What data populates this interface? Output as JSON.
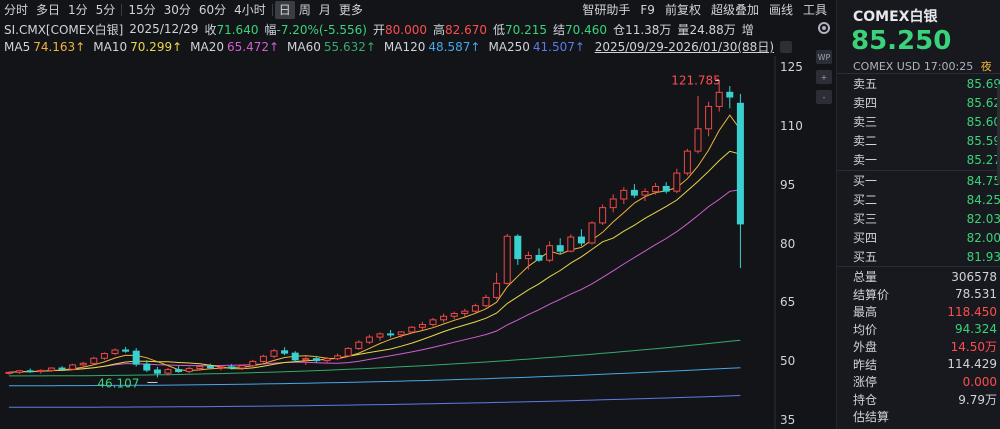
{
  "toolbar": {
    "periods": [
      "分时",
      "多日",
      "1分",
      "5分",
      "15分",
      "30分",
      "60分",
      "4小时",
      "日",
      "周",
      "月",
      "更多"
    ],
    "active": "日",
    "right": [
      "智研助手",
      "F9",
      "前复权",
      "超级叠加",
      "画线",
      "工具"
    ]
  },
  "info": {
    "symbol": "SI.CMX[COMEX白银]",
    "date": "2025/12/29",
    "close_label": "收",
    "close": "71.640",
    "change_label": "幅",
    "change": "-7.20%(-5.556)",
    "open_label": "开",
    "open": "80.000",
    "high_label": "高",
    "high": "82.670",
    "low_label": "低",
    "low": "70.215",
    "settle_label": "结",
    "settle": "70.460",
    "oi_label": "仓",
    "oi": "11.38万",
    "vol_label": "量",
    "vol": "24.88万",
    "inc_label": "增"
  },
  "ma": [
    {
      "label": "MA5",
      "value": "74.163↑",
      "color": "#f0b43c"
    },
    {
      "label": "MA10",
      "value": "70.299↑",
      "color": "#e8d84a"
    },
    {
      "label": "MA20",
      "value": "65.472↑",
      "color": "#d05fd0"
    },
    {
      "label": "MA60",
      "value": "55.632↑",
      "color": "#37a96b"
    },
    {
      "label": "MA120",
      "value": "48.587↑",
      "color": "#49a6e8"
    },
    {
      "label": "MA250",
      "value": "41.507↑",
      "color": "#5d7be8"
    }
  ],
  "range": {
    "text": "2025/09/29-2026/01/30(88日)"
  },
  "side_icons": [
    "WP",
    "+",
    "-"
  ],
  "chart": {
    "annot_high": "121.785",
    "annot_low": "46.107",
    "y_ticks": [
      "125",
      "110",
      "95",
      "80",
      "65",
      "50",
      "35"
    ]
  },
  "chart_data": {
    "type": "candlestick",
    "ylim": [
      35,
      125
    ],
    "y_ticks": [
      125,
      110,
      95,
      80,
      65,
      50,
      35
    ],
    "annotations": [
      {
        "label": "121.785",
        "kind": "high"
      },
      {
        "label": "46.107",
        "kind": "low"
      }
    ],
    "candles": [
      [
        47.2,
        47.6,
        46.8,
        47.4
      ],
      [
        47.4,
        48.0,
        47.0,
        47.8
      ],
      [
        47.8,
        48.4,
        47.3,
        47.6
      ],
      [
        47.6,
        48.2,
        47.1,
        47.9
      ],
      [
        47.9,
        48.7,
        47.6,
        48.5
      ],
      [
        48.5,
        49.0,
        47.9,
        48.2
      ],
      [
        48.2,
        49.6,
        48.0,
        49.3
      ],
      [
        49.3,
        50.1,
        48.6,
        49.7
      ],
      [
        49.7,
        51.4,
        49.5,
        51.0
      ],
      [
        51.0,
        52.5,
        50.6,
        52.2
      ],
      [
        52.2,
        53.5,
        51.8,
        53.1
      ],
      [
        53.1,
        53.9,
        52.4,
        52.8
      ],
      [
        52.8,
        53.6,
        48.9,
        49.5
      ],
      [
        49.5,
        50.5,
        47.5,
        48.0
      ],
      [
        48.0,
        48.8,
        46.1,
        47.2
      ],
      [
        47.2,
        48.5,
        46.6,
        48.1
      ],
      [
        48.1,
        49.0,
        47.3,
        47.6
      ],
      [
        47.6,
        48.8,
        47.2,
        48.4
      ],
      [
        48.4,
        49.3,
        47.8,
        48.9
      ],
      [
        48.9,
        49.6,
        48.2,
        48.6
      ],
      [
        48.6,
        49.2,
        47.9,
        48.8
      ],
      [
        48.8,
        49.5,
        48.1,
        48.5
      ],
      [
        48.5,
        49.4,
        48.0,
        49.1
      ],
      [
        49.1,
        50.6,
        48.8,
        50.2
      ],
      [
        50.2,
        51.9,
        49.9,
        51.5
      ],
      [
        51.5,
        53.4,
        51.0,
        52.9
      ],
      [
        52.9,
        53.8,
        51.8,
        52.3
      ],
      [
        52.3,
        52.8,
        50.0,
        50.6
      ],
      [
        50.6,
        51.4,
        49.3,
        50.9
      ],
      [
        50.9,
        51.5,
        49.9,
        50.4
      ],
      [
        50.4,
        51.3,
        49.8,
        50.9
      ],
      [
        50.9,
        52.2,
        50.5,
        51.6
      ],
      [
        51.6,
        53.8,
        51.3,
        53.5
      ],
      [
        53.5,
        55.6,
        53.1,
        55.1
      ],
      [
        55.1,
        57.0,
        54.6,
        56.4
      ],
      [
        56.4,
        57.6,
        55.5,
        57.2
      ],
      [
        57.2,
        58.2,
        56.3,
        57.0
      ],
      [
        57.0,
        57.9,
        56.2,
        57.7
      ],
      [
        57.7,
        59.2,
        57.3,
        58.9
      ],
      [
        58.9,
        60.3,
        58.2,
        59.6
      ],
      [
        59.6,
        61.3,
        59.1,
        60.8
      ],
      [
        60.8,
        62.4,
        60.1,
        61.7
      ],
      [
        61.7,
        62.9,
        61.0,
        62.4
      ],
      [
        62.4,
        63.6,
        61.6,
        63.0
      ],
      [
        63.0,
        64.9,
        62.6,
        64.4
      ],
      [
        64.4,
        67.2,
        64.0,
        66.5
      ],
      [
        66.5,
        72.8,
        66.0,
        70.1
      ],
      [
        70.1,
        82.7,
        69.8,
        82.1
      ],
      [
        82.1,
        82.6,
        74.8,
        76.4
      ],
      [
        76.4,
        78.2,
        73.6,
        77.2
      ],
      [
        77.2,
        79.0,
        75.6,
        76.0
      ],
      [
        76.0,
        80.8,
        75.5,
        79.7
      ],
      [
        79.7,
        81.6,
        77.5,
        78.3
      ],
      [
        78.3,
        82.6,
        78.0,
        81.9
      ],
      [
        81.9,
        83.9,
        79.6,
        80.4
      ],
      [
        80.4,
        85.9,
        80.0,
        85.5
      ],
      [
        85.5,
        90.2,
        85.0,
        89.4
      ],
      [
        89.4,
        92.8,
        88.2,
        91.6
      ],
      [
        91.6,
        94.6,
        90.3,
        93.8
      ],
      [
        93.8,
        95.4,
        91.9,
        92.6
      ],
      [
        92.6,
        94.3,
        91.1,
        93.5
      ],
      [
        93.5,
        95.7,
        92.7,
        94.8
      ],
      [
        94.8,
        95.9,
        93.0,
        93.6
      ],
      [
        93.6,
        99.3,
        93.1,
        98.2
      ],
      [
        98.2,
        104.4,
        97.6,
        103.8
      ],
      [
        103.8,
        117.9,
        103.2,
        109.5
      ],
      [
        109.5,
        116.4,
        107.6,
        115.2
      ],
      [
        115.2,
        121.8,
        113.9,
        118.8
      ],
      [
        118.8,
        120.4,
        114.7,
        117.6
      ],
      [
        116.0,
        118.4,
        74.0,
        85.25
      ]
    ],
    "ma_series": [
      "MA5",
      "MA10",
      "MA20",
      "MA60",
      "MA120",
      "MA250"
    ]
  },
  "panel": {
    "title": "COMEX白银",
    "price": "85.250",
    "sub": "COMEX  USD  17:00:25",
    "sub_tag": "夜",
    "asks": [
      {
        "label": "卖五",
        "value": "85.69"
      },
      {
        "label": "卖四",
        "value": "85.62"
      },
      {
        "label": "卖三",
        "value": "85.60"
      },
      {
        "label": "卖二",
        "value": "85.59"
      },
      {
        "label": "卖一",
        "value": "85.27"
      }
    ],
    "bids": [
      {
        "label": "买一",
        "value": "84.75"
      },
      {
        "label": "买二",
        "value": "84.25"
      },
      {
        "label": "买三",
        "value": "82.03"
      },
      {
        "label": "买四",
        "value": "82.00"
      },
      {
        "label": "买五",
        "value": "81.93"
      }
    ],
    "stats": [
      {
        "label": "总量",
        "value": "306578",
        "cls": ""
      },
      {
        "label": "结算价",
        "value": "78.531",
        "cls": ""
      },
      {
        "label": "最高",
        "value": "118.450",
        "cls": "red"
      },
      {
        "label": "均价",
        "value": "94.324",
        "cls": "green"
      },
      {
        "label": "外盘",
        "value": "14.50万",
        "cls": "red"
      },
      {
        "label": "昨结",
        "value": "114.429",
        "cls": ""
      },
      {
        "label": "涨停",
        "value": "0.000",
        "cls": "red"
      },
      {
        "label": "持仓",
        "value": "9.79万",
        "cls": ""
      },
      {
        "label": "估结算",
        "value": "",
        "cls": ""
      }
    ]
  }
}
